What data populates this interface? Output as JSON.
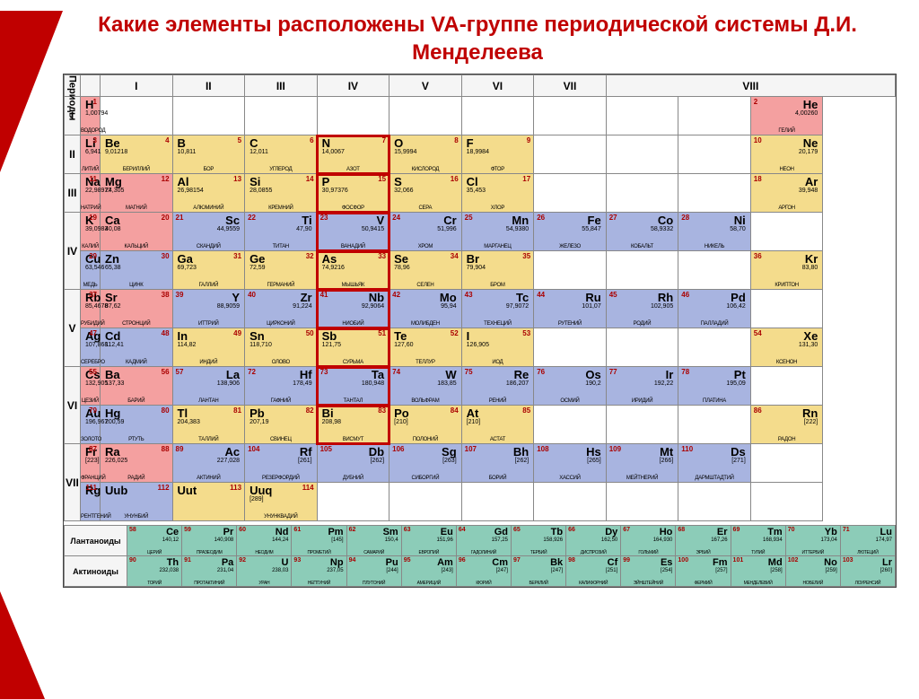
{
  "title": "Какие элементы расположены VA-группе периодической системы Д.И. Менделеева",
  "groups": [
    "I",
    "II",
    "III",
    "IV",
    "V",
    "VI",
    "VII",
    "VIII"
  ],
  "period_label": "Периоды",
  "periods": [
    "I",
    "II",
    "III",
    "IV",
    "V",
    "VI",
    "VII"
  ],
  "series": {
    "lanthanoids": {
      "label": "Лантаноиды",
      "items": [
        {
          "n": 58,
          "s": "Ce",
          "m": "140,12",
          "name": "Церий"
        },
        {
          "n": 59,
          "s": "Pr",
          "m": "140,908",
          "name": "Празеодим"
        },
        {
          "n": 60,
          "s": "Nd",
          "m": "144,24",
          "name": "Неодим"
        },
        {
          "n": 61,
          "s": "Pm",
          "m": "[145]",
          "name": "Прометий"
        },
        {
          "n": 62,
          "s": "Sm",
          "m": "150,4",
          "name": "Самарий"
        },
        {
          "n": 63,
          "s": "Eu",
          "m": "151,96",
          "name": "Европий"
        },
        {
          "n": 64,
          "s": "Gd",
          "m": "157,25",
          "name": "Гадолиний"
        },
        {
          "n": 65,
          "s": "Tb",
          "m": "158,926",
          "name": "Тербий"
        },
        {
          "n": 66,
          "s": "Dy",
          "m": "162,50",
          "name": "Диспрозий"
        },
        {
          "n": 67,
          "s": "Ho",
          "m": "164,930",
          "name": "Гольмий"
        },
        {
          "n": 68,
          "s": "Er",
          "m": "167,26",
          "name": "Эрбий"
        },
        {
          "n": 69,
          "s": "Tm",
          "m": "168,934",
          "name": "Тулий"
        },
        {
          "n": 70,
          "s": "Yb",
          "m": "173,04",
          "name": "Иттербий"
        },
        {
          "n": 71,
          "s": "Lu",
          "m": "174,97",
          "name": "Лютеций"
        }
      ]
    },
    "actinoids": {
      "label": "Актиноиды",
      "items": [
        {
          "n": 90,
          "s": "Th",
          "m": "232,038",
          "name": "Торий"
        },
        {
          "n": 91,
          "s": "Pa",
          "m": "231,04",
          "name": "Протактиний"
        },
        {
          "n": 92,
          "s": "U",
          "m": "238,03",
          "name": "Уран"
        },
        {
          "n": 93,
          "s": "Np",
          "m": "237,05",
          "name": "Нептуний"
        },
        {
          "n": 94,
          "s": "Pu",
          "m": "[244]",
          "name": "Плутоний"
        },
        {
          "n": 95,
          "s": "Am",
          "m": "[243]",
          "name": "Америций"
        },
        {
          "n": 96,
          "s": "Cm",
          "m": "[247]",
          "name": "Кюрий"
        },
        {
          "n": 97,
          "s": "Bk",
          "m": "[247]",
          "name": "Берклий"
        },
        {
          "n": 98,
          "s": "Cf",
          "m": "[251]",
          "name": "Калифорний"
        },
        {
          "n": 99,
          "s": "Es",
          "m": "[254]",
          "name": "Эйнштейний"
        },
        {
          "n": 100,
          "s": "Fm",
          "m": "[257]",
          "name": "Фермий"
        },
        {
          "n": 101,
          "s": "Md",
          "m": "[258]",
          "name": "Менделевий"
        },
        {
          "n": 102,
          "s": "No",
          "m": "[259]",
          "name": "Нобелий"
        },
        {
          "n": 103,
          "s": "Lr",
          "m": "[260]",
          "name": "Лоуренсий"
        }
      ]
    }
  },
  "highlight_group": "V",
  "colors": {
    "red": "#f4a0a0",
    "yellow": "#f4dc8c",
    "blue": "#a8b4e0",
    "green": "#8cccb8",
    "title": "#c00000",
    "wedge": "#c00000",
    "border": "#888888",
    "highlight": "#c00000",
    "box": "#000000"
  },
  "rows": [
    [
      {
        "n": 1,
        "s": "H",
        "m": "1,00794",
        "name": "Водород",
        "c": "red"
      },
      null,
      null,
      null,
      null,
      null,
      null,
      null,
      null,
      null,
      {
        "n": 2,
        "s": "He",
        "m": "4,00260",
        "name": "Гелий",
        "c": "red",
        "align": "R"
      }
    ],
    [
      {
        "n": 3,
        "s": "Li",
        "m": "6,941",
        "name": "Литий",
        "c": "red"
      },
      {
        "n": 4,
        "s": "Be",
        "m": "9,01218",
        "name": "Бериллий",
        "c": "yel"
      },
      {
        "n": 5,
        "s": "B",
        "m": "10,811",
        "name": "Бор",
        "c": "yel"
      },
      {
        "n": 6,
        "s": "C",
        "m": "12,011",
        "name": "Углерод",
        "c": "yel"
      },
      {
        "n": 7,
        "s": "N",
        "m": "14,0067",
        "name": "Азот",
        "c": "yel",
        "hl": true
      },
      {
        "n": 8,
        "s": "O",
        "m": "15,9994",
        "name": "Кислород",
        "c": "yel"
      },
      {
        "n": 9,
        "s": "F",
        "m": "18,9984",
        "name": "Фтор",
        "c": "yel"
      },
      null,
      null,
      null,
      {
        "n": 10,
        "s": "Ne",
        "m": "20,179",
        "name": "Неон",
        "c": "yel",
        "align": "R"
      }
    ],
    [
      {
        "n": 11,
        "s": "Na",
        "m": "22,98977",
        "name": "Натрий",
        "c": "red"
      },
      {
        "n": 12,
        "s": "Mg",
        "m": "24,305",
        "name": "Магний",
        "c": "red"
      },
      {
        "n": 13,
        "s": "Al",
        "m": "26,98154",
        "name": "Алюминий",
        "c": "yel"
      },
      {
        "n": 14,
        "s": "Si",
        "m": "28,0855",
        "name": "Кремний",
        "c": "yel"
      },
      {
        "n": 15,
        "s": "P",
        "m": "30,97376",
        "name": "Фосфор",
        "c": "yel",
        "hl": true
      },
      {
        "n": 16,
        "s": "S",
        "m": "32,066",
        "name": "Сера",
        "c": "yel"
      },
      {
        "n": 17,
        "s": "Cl",
        "m": "35,453",
        "name": "Хлор",
        "c": "yel"
      },
      null,
      null,
      null,
      {
        "n": 18,
        "s": "Ar",
        "m": "39,948",
        "name": "Аргон",
        "c": "yel",
        "align": "R"
      }
    ],
    [
      {
        "n": 19,
        "s": "K",
        "m": "39,0983",
        "name": "Калий",
        "c": "red"
      },
      {
        "n": 20,
        "s": "Ca",
        "m": "40,08",
        "name": "Кальций",
        "c": "red"
      },
      {
        "n": 21,
        "s": "Sc",
        "m": "44,9559",
        "name": "Скандий",
        "c": "blu",
        "align": "R"
      },
      {
        "n": 22,
        "s": "Ti",
        "m": "47,90",
        "name": "Титан",
        "c": "blu",
        "align": "R"
      },
      {
        "n": 23,
        "s": "V",
        "m": "50,9415",
        "name": "Ванадий",
        "c": "blu",
        "align": "R",
        "hl": true
      },
      {
        "n": 24,
        "s": "Cr",
        "m": "51,996",
        "name": "Хром",
        "c": "blu",
        "align": "R"
      },
      {
        "n": 25,
        "s": "Mn",
        "m": "54,9380",
        "name": "Марганец",
        "c": "blu",
        "align": "R"
      },
      {
        "n": 26,
        "s": "Fe",
        "m": "55,847",
        "name": "Железо",
        "c": "blu",
        "align": "R"
      },
      {
        "n": 27,
        "s": "Co",
        "m": "58,9332",
        "name": "Кобальт",
        "c": "blu",
        "align": "R"
      },
      {
        "n": 28,
        "s": "Ni",
        "m": "58,70",
        "name": "Никель",
        "c": "blu",
        "align": "R"
      },
      null
    ],
    [
      {
        "n": 29,
        "s": "Cu",
        "m": "63,546",
        "name": "Медь",
        "c": "blu"
      },
      {
        "n": 30,
        "s": "Zn",
        "m": "65,38",
        "name": "Цинк",
        "c": "blu"
      },
      {
        "n": 31,
        "s": "Ga",
        "m": "69,723",
        "name": "Галлий",
        "c": "yel"
      },
      {
        "n": 32,
        "s": "Ge",
        "m": "72,59",
        "name": "Германий",
        "c": "yel"
      },
      {
        "n": 33,
        "s": "As",
        "m": "74,9216",
        "name": "Мышьяк",
        "c": "yel",
        "hl": true
      },
      {
        "n": 34,
        "s": "Se",
        "m": "78,96",
        "name": "Селен",
        "c": "yel"
      },
      {
        "n": 35,
        "s": "Br",
        "m": "79,904",
        "name": "Бром",
        "c": "yel"
      },
      null,
      null,
      null,
      {
        "n": 36,
        "s": "Kr",
        "m": "83,80",
        "name": "Криптон",
        "c": "yel",
        "align": "R"
      }
    ],
    [
      {
        "n": 37,
        "s": "Rb",
        "m": "85,4678",
        "name": "Рубидий",
        "c": "red"
      },
      {
        "n": 38,
        "s": "Sr",
        "m": "87,62",
        "name": "Стронций",
        "c": "red"
      },
      {
        "n": 39,
        "s": "Y",
        "m": "88,9059",
        "name": "Иттрий",
        "c": "blu",
        "align": "R"
      },
      {
        "n": 40,
        "s": "Zr",
        "m": "91,224",
        "name": "Цирконий",
        "c": "blu",
        "align": "R"
      },
      {
        "n": 41,
        "s": "Nb",
        "m": "92,9064",
        "name": "Ниобий",
        "c": "blu",
        "align": "R",
        "hl": true
      },
      {
        "n": 42,
        "s": "Mo",
        "m": "95,94",
        "name": "Молибден",
        "c": "blu",
        "align": "R"
      },
      {
        "n": 43,
        "s": "Tc",
        "m": "97,9072",
        "name": "Технеций",
        "c": "blu",
        "align": "R"
      },
      {
        "n": 44,
        "s": "Ru",
        "m": "101,07",
        "name": "Рутений",
        "c": "blu",
        "align": "R"
      },
      {
        "n": 45,
        "s": "Rh",
        "m": "102,905",
        "name": "Родий",
        "c": "blu",
        "align": "R"
      },
      {
        "n": 46,
        "s": "Pd",
        "m": "106,42",
        "name": "Палладий",
        "c": "blu",
        "align": "R"
      },
      null
    ],
    [
      {
        "n": 47,
        "s": "Ag",
        "m": "107,868",
        "name": "Серебро",
        "c": "blu"
      },
      {
        "n": 48,
        "s": "Cd",
        "m": "112,41",
        "name": "Кадмий",
        "c": "blu"
      },
      {
        "n": 49,
        "s": "In",
        "m": "114,82",
        "name": "Индий",
        "c": "yel"
      },
      {
        "n": 50,
        "s": "Sn",
        "m": "118,710",
        "name": "Олово",
        "c": "yel"
      },
      {
        "n": 51,
        "s": "Sb",
        "m": "121,75",
        "name": "Сурьма",
        "c": "yel",
        "hl": true
      },
      {
        "n": 52,
        "s": "Te",
        "m": "127,60",
        "name": "Теллур",
        "c": "yel"
      },
      {
        "n": 53,
        "s": "I",
        "m": "126,905",
        "name": "Иод",
        "c": "yel"
      },
      null,
      null,
      null,
      {
        "n": 54,
        "s": "Xe",
        "m": "131,30",
        "name": "Ксенон",
        "c": "yel",
        "align": "R"
      }
    ],
    [
      {
        "n": 55,
        "s": "Cs",
        "m": "132,905",
        "name": "Цезий",
        "c": "red"
      },
      {
        "n": 56,
        "s": "Ba",
        "m": "137,33",
        "name": "Барий",
        "c": "red"
      },
      {
        "n": 57,
        "s": "La",
        "m": "138,906",
        "name": "Лантан",
        "c": "blu",
        "align": "R"
      },
      {
        "n": 72,
        "s": "Hf",
        "m": "178,49",
        "name": "Гафний",
        "c": "blu",
        "align": "R"
      },
      {
        "n": 73,
        "s": "Ta",
        "m": "180,948",
        "name": "Тантал",
        "c": "blu",
        "align": "R",
        "hl": true
      },
      {
        "n": 74,
        "s": "W",
        "m": "183,85",
        "name": "Вольфрам",
        "c": "blu",
        "align": "R"
      },
      {
        "n": 75,
        "s": "Re",
        "m": "186,207",
        "name": "Рений",
        "c": "blu",
        "align": "R"
      },
      {
        "n": 76,
        "s": "Os",
        "m": "190,2",
        "name": "Осмий",
        "c": "blu",
        "align": "R"
      },
      {
        "n": 77,
        "s": "Ir",
        "m": "192,22",
        "name": "Иридий",
        "c": "blu",
        "align": "R"
      },
      {
        "n": 78,
        "s": "Pt",
        "m": "195,09",
        "name": "Платина",
        "c": "blu",
        "align": "R"
      },
      null
    ],
    [
      {
        "n": 79,
        "s": "Au",
        "m": "196,967",
        "name": "Золото",
        "c": "blu"
      },
      {
        "n": 80,
        "s": "Hg",
        "m": "200,59",
        "name": "Ртуть",
        "c": "blu"
      },
      {
        "n": 81,
        "s": "Tl",
        "m": "204,383",
        "name": "Таллий",
        "c": "yel"
      },
      {
        "n": 82,
        "s": "Pb",
        "m": "207,19",
        "name": "Свинец",
        "c": "yel"
      },
      {
        "n": 83,
        "s": "Bi",
        "m": "208,98",
        "name": "Висмут",
        "c": "yel",
        "hl": true
      },
      {
        "n": 84,
        "s": "Po",
        "m": "[210]",
        "name": "Полоний",
        "c": "yel"
      },
      {
        "n": 85,
        "s": "At",
        "m": "[210]",
        "name": "Астат",
        "c": "yel"
      },
      null,
      null,
      null,
      {
        "n": 86,
        "s": "Rn",
        "m": "[222]",
        "name": "Радон",
        "c": "yel",
        "align": "R"
      }
    ],
    [
      {
        "n": 87,
        "s": "Fr",
        "m": "[223]",
        "name": "Франций",
        "c": "red"
      },
      {
        "n": 88,
        "s": "Ra",
        "m": "226,025",
        "name": "Радий",
        "c": "red"
      },
      {
        "n": 89,
        "s": "Ac",
        "m": "227,028",
        "name": "Актиний",
        "c": "blu",
        "align": "R"
      },
      {
        "n": 104,
        "s": "Rf",
        "m": "[261]",
        "name": "Резерфордий",
        "c": "blu",
        "align": "R"
      },
      {
        "n": 105,
        "s": "Db",
        "m": "[262]",
        "name": "Дубний",
        "c": "blu",
        "align": "R"
      },
      {
        "n": 106,
        "s": "Sg",
        "m": "[263]",
        "name": "Сиборгий",
        "c": "blu",
        "align": "R"
      },
      {
        "n": 107,
        "s": "Bh",
        "m": "[262]",
        "name": "Борий",
        "c": "blu",
        "align": "R"
      },
      {
        "n": 108,
        "s": "Hs",
        "m": "[265]",
        "name": "Хассий",
        "c": "blu",
        "align": "R"
      },
      {
        "n": 109,
        "s": "Mt",
        "m": "[266]",
        "name": "Мейтнерий",
        "c": "blu",
        "align": "R"
      },
      {
        "n": 110,
        "s": "Ds",
        "m": "[271]",
        "name": "Дармштадтий",
        "c": "blu",
        "align": "R"
      },
      null
    ],
    [
      {
        "n": 111,
        "s": "Rg",
        "m": "",
        "name": "Рентгений",
        "c": "blu"
      },
      {
        "n": 112,
        "s": "Uub",
        "m": "",
        "name": "Унунбий",
        "c": "blu"
      },
      {
        "n": 113,
        "s": "Uut",
        "m": "",
        "name": "",
        "c": "yel"
      },
      {
        "n": 114,
        "s": "Uuq",
        "m": "[289]",
        "name": "Унунквадий",
        "c": "yel"
      },
      null,
      null,
      null,
      null,
      null,
      null,
      null
    ]
  ],
  "rowspans": [
    1,
    1,
    1,
    2,
    0,
    2,
    0,
    2,
    0,
    2,
    0
  ],
  "period_for_row": [
    "I",
    "II",
    "III",
    "IV",
    "",
    "V",
    "",
    "VI",
    "",
    "VII",
    ""
  ]
}
